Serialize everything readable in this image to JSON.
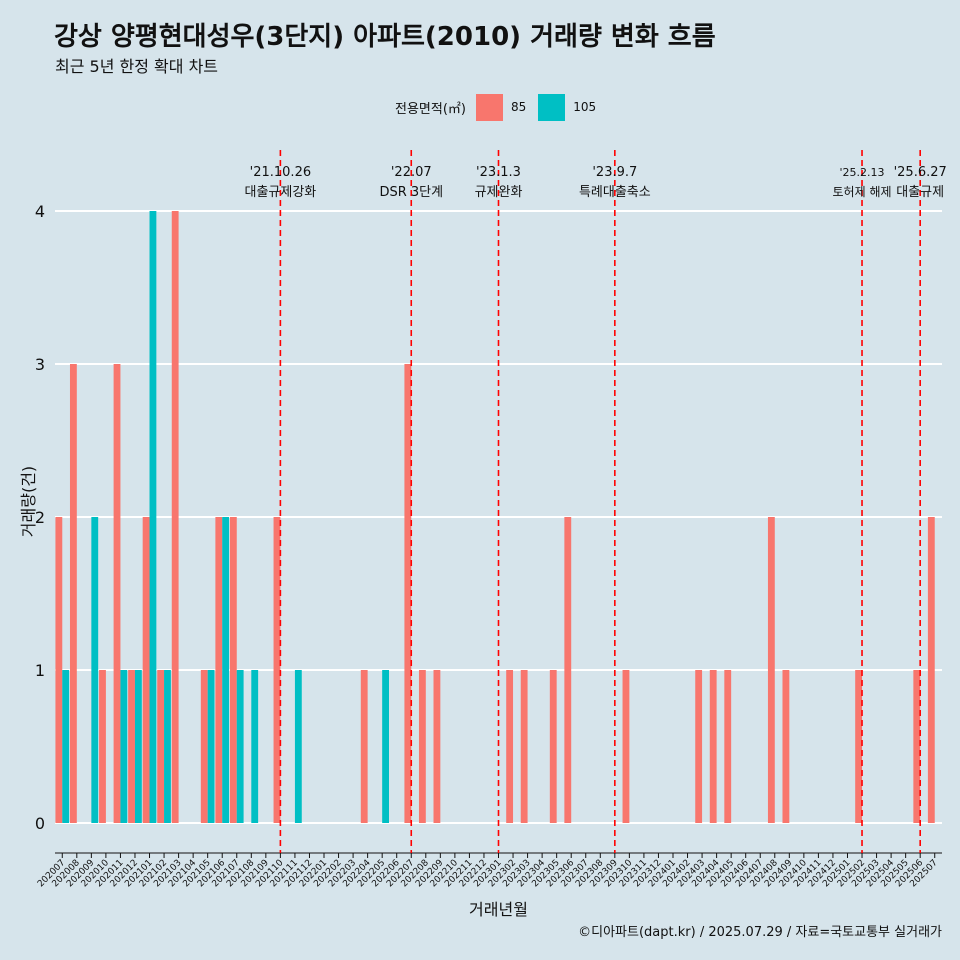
{
  "title": "강상 양평현대성우(3단지) 아파트(2010) 거래량 변화 흐름",
  "subtitle": "최근 5년 한정 확대 차트",
  "caption": "©디아파트(dapt.kr) / 2025.07.29 / 자료=국토교통부 실거래가",
  "legend": {
    "title": "전용면적(㎡)",
    "items": [
      {
        "label": "85",
        "color": "#f8766d"
      },
      {
        "label": "105",
        "color": "#00bfc4"
      }
    ]
  },
  "chart_data": {
    "type": "bar",
    "xlabel": "거래년월",
    "ylabel": "거래량(건)",
    "ylim": [
      0,
      4
    ],
    "yticks": [
      0,
      1,
      2,
      3,
      4
    ],
    "grid": true,
    "legend_position": "top",
    "categories": [
      "202007",
      "202008",
      "202009",
      "202010",
      "202011",
      "202012",
      "202101",
      "202102",
      "202103",
      "202104",
      "202105",
      "202106",
      "202107",
      "202108",
      "202109",
      "202110",
      "202111",
      "202112",
      "202201",
      "202202",
      "202203",
      "202204",
      "202205",
      "202206",
      "202207",
      "202208",
      "202209",
      "202210",
      "202211",
      "202212",
      "202301",
      "202302",
      "202303",
      "202304",
      "202305",
      "202306",
      "202307",
      "202308",
      "202309",
      "202310",
      "202311",
      "202312",
      "202401",
      "202402",
      "202403",
      "202404",
      "202405",
      "202406",
      "202407",
      "202408",
      "202409",
      "202410",
      "202411",
      "202412",
      "202501",
      "202502",
      "202503",
      "202504",
      "202505",
      "202506",
      "202507"
    ],
    "series": [
      {
        "name": "85",
        "color": "#f8766d",
        "values": [
          2,
          3,
          0,
          1,
          3,
          1,
          2,
          1,
          4,
          0,
          1,
          2,
          2,
          0,
          0,
          2,
          0,
          0,
          0,
          0,
          0,
          1,
          0,
          0,
          3,
          1,
          1,
          0,
          0,
          0,
          0,
          1,
          1,
          0,
          1,
          2,
          0,
          0,
          0,
          1,
          0,
          0,
          0,
          0,
          1,
          1,
          1,
          0,
          0,
          2,
          1,
          0,
          0,
          0,
          0,
          1,
          0,
          0,
          0,
          1,
          2
        ]
      },
      {
        "name": "105",
        "color": "#00bfc4",
        "values": [
          1,
          0,
          2,
          0,
          1,
          1,
          4,
          1,
          0,
          0,
          1,
          2,
          1,
          1,
          0,
          0,
          1,
          0,
          0,
          0,
          0,
          0,
          1,
          0,
          0,
          0,
          0,
          0,
          0,
          0,
          0,
          0,
          0,
          0,
          0,
          0,
          0,
          0,
          0,
          0,
          0,
          0,
          0,
          0,
          0,
          0,
          0,
          0,
          0,
          0,
          0,
          0,
          0,
          0,
          0,
          0,
          0,
          0,
          0,
          0,
          0
        ]
      }
    ],
    "annotations": [
      {
        "at": "202110",
        "date": "'21.10.26",
        "label": "대출규제강화",
        "color": "#ff0000"
      },
      {
        "at": "202207",
        "date": "'22.07",
        "label": "DSR 3단계",
        "color": "#ff0000"
      },
      {
        "at": "202301",
        "date": "'23.1.3",
        "label": "규제완화",
        "color": "#ff0000"
      },
      {
        "at": "202309",
        "date": "'23.9.7",
        "label": "특례대출축소",
        "color": "#ff0000"
      },
      {
        "at": "202502",
        "date": "'25.2.13",
        "label": "토허제 해제",
        "color": "#ff0000"
      },
      {
        "at": "202506",
        "date": "'25.6.27",
        "label": "대출규제",
        "color": "#ff0000"
      }
    ]
  }
}
